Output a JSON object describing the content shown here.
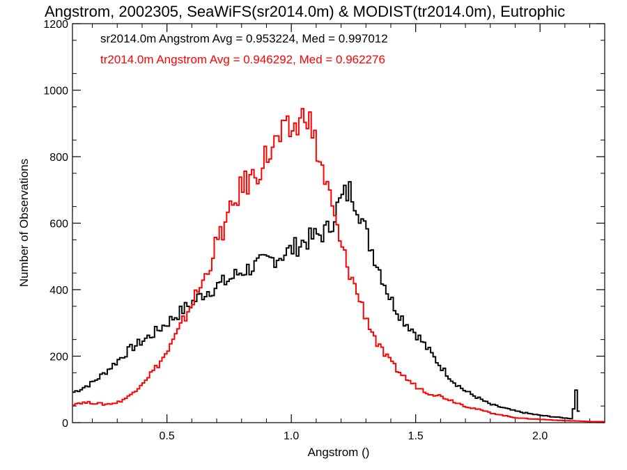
{
  "chart_data": {
    "type": "line",
    "title": "Angstrom, 2002305, SeaWiFS(sr2014.0m) & MODIST(tr2014.0m), Eutrophic",
    "xlabel": "Angstrom ()",
    "ylabel": "Number of Observations",
    "xlim": [
      0.12,
      2.26
    ],
    "ylim": [
      0,
      1200
    ],
    "xticks": [
      0.5,
      1.0,
      1.5,
      2.0
    ],
    "xtick_labels": [
      "0.5",
      "1.0",
      "1.5",
      "2.0"
    ],
    "yticks": [
      0,
      200,
      400,
      600,
      800,
      1000,
      1200
    ],
    "ytick_labels": [
      "0",
      "200",
      "400",
      "600",
      "800",
      "1000",
      "1200"
    ],
    "grid": false,
    "step": true,
    "series": [
      {
        "name": "sr2014.0m",
        "color": "#000000",
        "stats_text": "sr2014.0m Angstrom Avg = 0.953224, Med = 0.997012",
        "x": [
          0.12,
          0.15,
          0.2,
          0.25,
          0.3,
          0.35,
          0.4,
          0.45,
          0.5,
          0.55,
          0.6,
          0.65,
          0.7,
          0.75,
          0.8,
          0.85,
          0.9,
          0.95,
          1.0,
          1.05,
          1.1,
          1.15,
          1.18,
          1.21,
          1.24,
          1.27,
          1.3,
          1.35,
          1.4,
          1.45,
          1.5,
          1.55,
          1.6,
          1.65,
          1.7,
          1.75,
          1.8,
          1.85,
          1.9,
          1.95,
          2.0,
          2.05,
          2.1,
          2.13,
          2.145,
          2.16
        ],
        "y": [
          90,
          100,
          120,
          150,
          185,
          220,
          245,
          270,
          300,
          330,
          360,
          390,
          410,
          430,
          455,
          470,
          485,
          500,
          520,
          545,
          560,
          580,
          640,
          680,
          700,
          650,
          570,
          470,
          370,
          310,
          270,
          220,
          170,
          125,
          95,
          75,
          55,
          45,
          35,
          28,
          22,
          18,
          14,
          12,
          100,
          5
        ]
      },
      {
        "name": "tr2014.0m",
        "color": "#ff0000",
        "stats_text": "tr2014.0m Angstrom Avg = 0.946292, Med = 0.962276",
        "x": [
          0.12,
          0.15,
          0.2,
          0.25,
          0.3,
          0.35,
          0.4,
          0.45,
          0.5,
          0.55,
          0.6,
          0.65,
          0.7,
          0.75,
          0.8,
          0.85,
          0.9,
          0.95,
          1.0,
          1.04,
          1.06,
          1.08,
          1.1,
          1.15,
          1.2,
          1.25,
          1.3,
          1.35,
          1.4,
          1.45,
          1.5,
          1.55,
          1.6,
          1.65,
          1.7,
          1.75,
          1.8,
          1.85,
          1.9,
          1.95,
          2.0,
          2.05,
          2.1,
          2.15,
          2.2,
          2.26
        ],
        "y": [
          55,
          60,
          60,
          55,
          60,
          80,
          120,
          160,
          210,
          280,
          360,
          430,
          540,
          620,
          710,
          740,
          800,
          850,
          880,
          900,
          960,
          880,
          830,
          690,
          530,
          420,
          320,
          230,
          180,
          140,
          110,
          90,
          80,
          65,
          50,
          40,
          30,
          22,
          15,
          12,
          10,
          8,
          6,
          5,
          3,
          3
        ]
      }
    ]
  }
}
